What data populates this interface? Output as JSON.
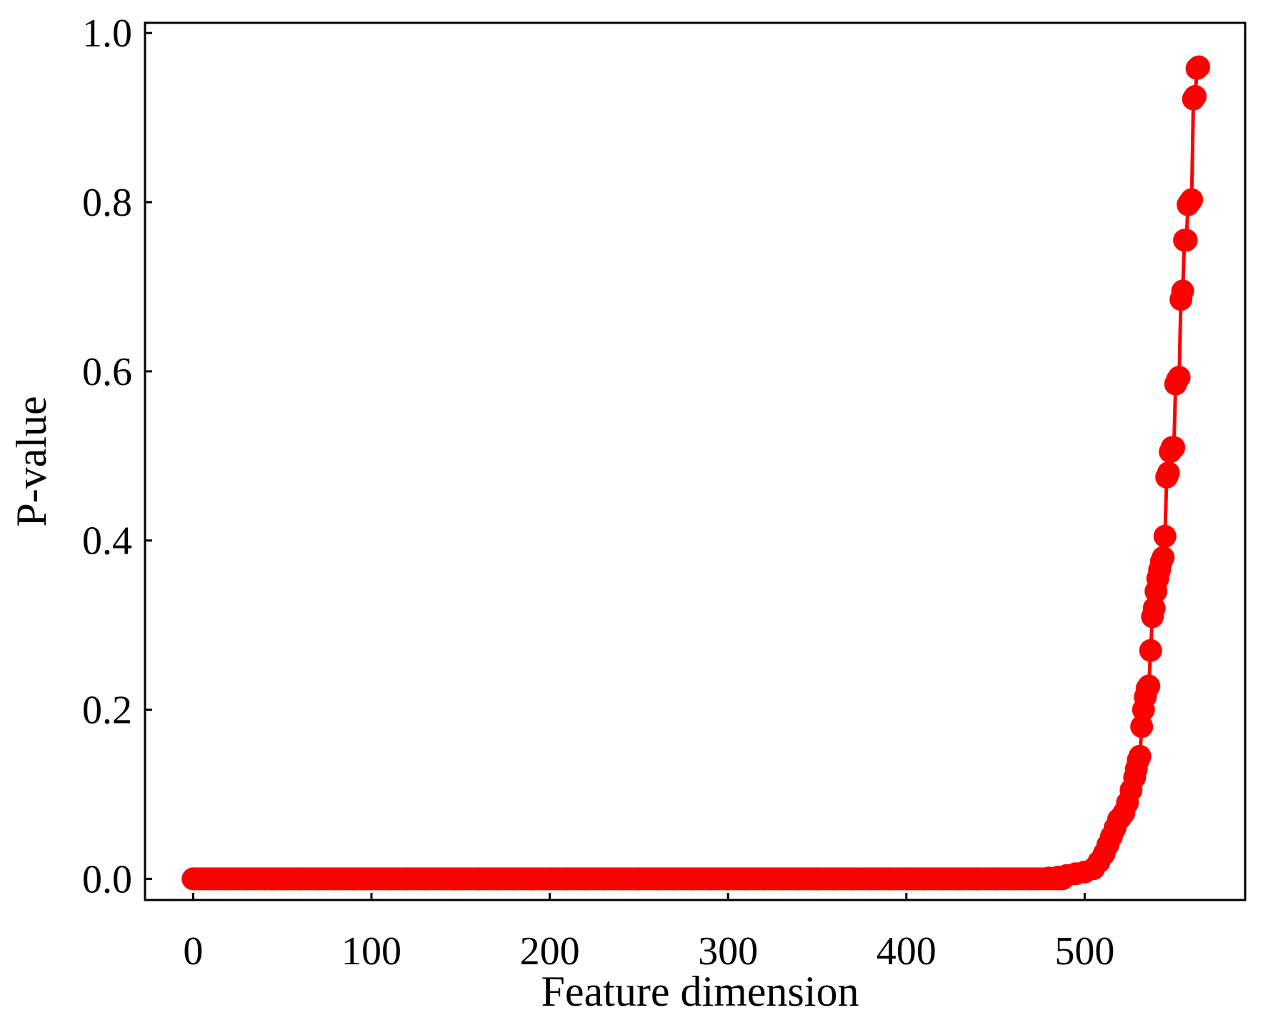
{
  "chart_data": {
    "type": "line",
    "title": "",
    "xlabel": "Feature dimension",
    "ylabel": "P-value",
    "xlim": [
      -27,
      590
    ],
    "ylim": [
      -0.025,
      1.012
    ],
    "xticks": [
      0,
      100,
      200,
      300,
      400,
      500
    ],
    "xtick_labels": [
      "0",
      "100",
      "200",
      "300",
      "400",
      "500"
    ],
    "yticks": [
      0.0,
      0.2,
      0.4,
      0.6,
      0.8,
      1.0
    ],
    "ytick_labels": [
      "0.0",
      "0.2",
      "0.4",
      "0.6",
      "0.8",
      "1.0"
    ],
    "grid": false,
    "legend": "none",
    "tick_direction": "in",
    "series": [
      {
        "color": "#ff0000",
        "marker": "circle",
        "x": [
          0,
          10,
          20,
          30,
          40,
          50,
          60,
          70,
          80,
          90,
          100,
          110,
          120,
          130,
          140,
          150,
          160,
          170,
          180,
          190,
          200,
          210,
          220,
          230,
          240,
          250,
          260,
          270,
          280,
          290,
          300,
          310,
          320,
          330,
          340,
          350,
          360,
          370,
          380,
          390,
          400,
          410,
          420,
          430,
          440,
          450,
          460,
          470,
          480,
          485,
          490,
          495,
          500,
          505,
          508,
          511,
          513,
          515,
          517,
          519,
          520,
          522,
          524,
          526,
          528,
          529,
          530,
          531,
          532,
          533,
          534,
          535,
          536,
          537,
          538,
          539,
          540,
          541,
          542,
          543,
          544,
          545,
          546,
          547,
          548,
          549,
          550,
          551,
          552,
          553,
          554,
          555,
          556,
          557,
          558,
          559,
          560,
          561,
          562,
          563,
          564
        ],
        "y": [
          0.0,
          0.0,
          0.0,
          0.0,
          0.0,
          0.0,
          0.0,
          0.0,
          0.0,
          0.0,
          0.0,
          0.0,
          0.0,
          0.0,
          0.0,
          0.0,
          0.0,
          0.0,
          0.0,
          0.0,
          0.0,
          0.0,
          0.0,
          0.0,
          0.0,
          0.0,
          0.0,
          0.0,
          0.0,
          0.0,
          0.0,
          0.0,
          0.0,
          0.0,
          0.0,
          0.0,
          0.0,
          0.0,
          0.0,
          0.0,
          0.0,
          0.0,
          0.0,
          0.0,
          0.0,
          0.0,
          0.0,
          0.0,
          0.001,
          0.002,
          0.004,
          0.006,
          0.008,
          0.012,
          0.02,
          0.03,
          0.04,
          0.05,
          0.06,
          0.07,
          0.072,
          0.078,
          0.09,
          0.105,
          0.12,
          0.13,
          0.14,
          0.145,
          0.18,
          0.2,
          0.215,
          0.225,
          0.228,
          0.27,
          0.31,
          0.32,
          0.34,
          0.355,
          0.365,
          0.375,
          0.38,
          0.405,
          0.475,
          0.48,
          0.505,
          0.51,
          0.51,
          0.585,
          0.59,
          0.593,
          0.685,
          0.695,
          0.755,
          0.755,
          0.797,
          0.8,
          0.803,
          0.922,
          0.925,
          0.958,
          0.96
        ]
      }
    ]
  }
}
